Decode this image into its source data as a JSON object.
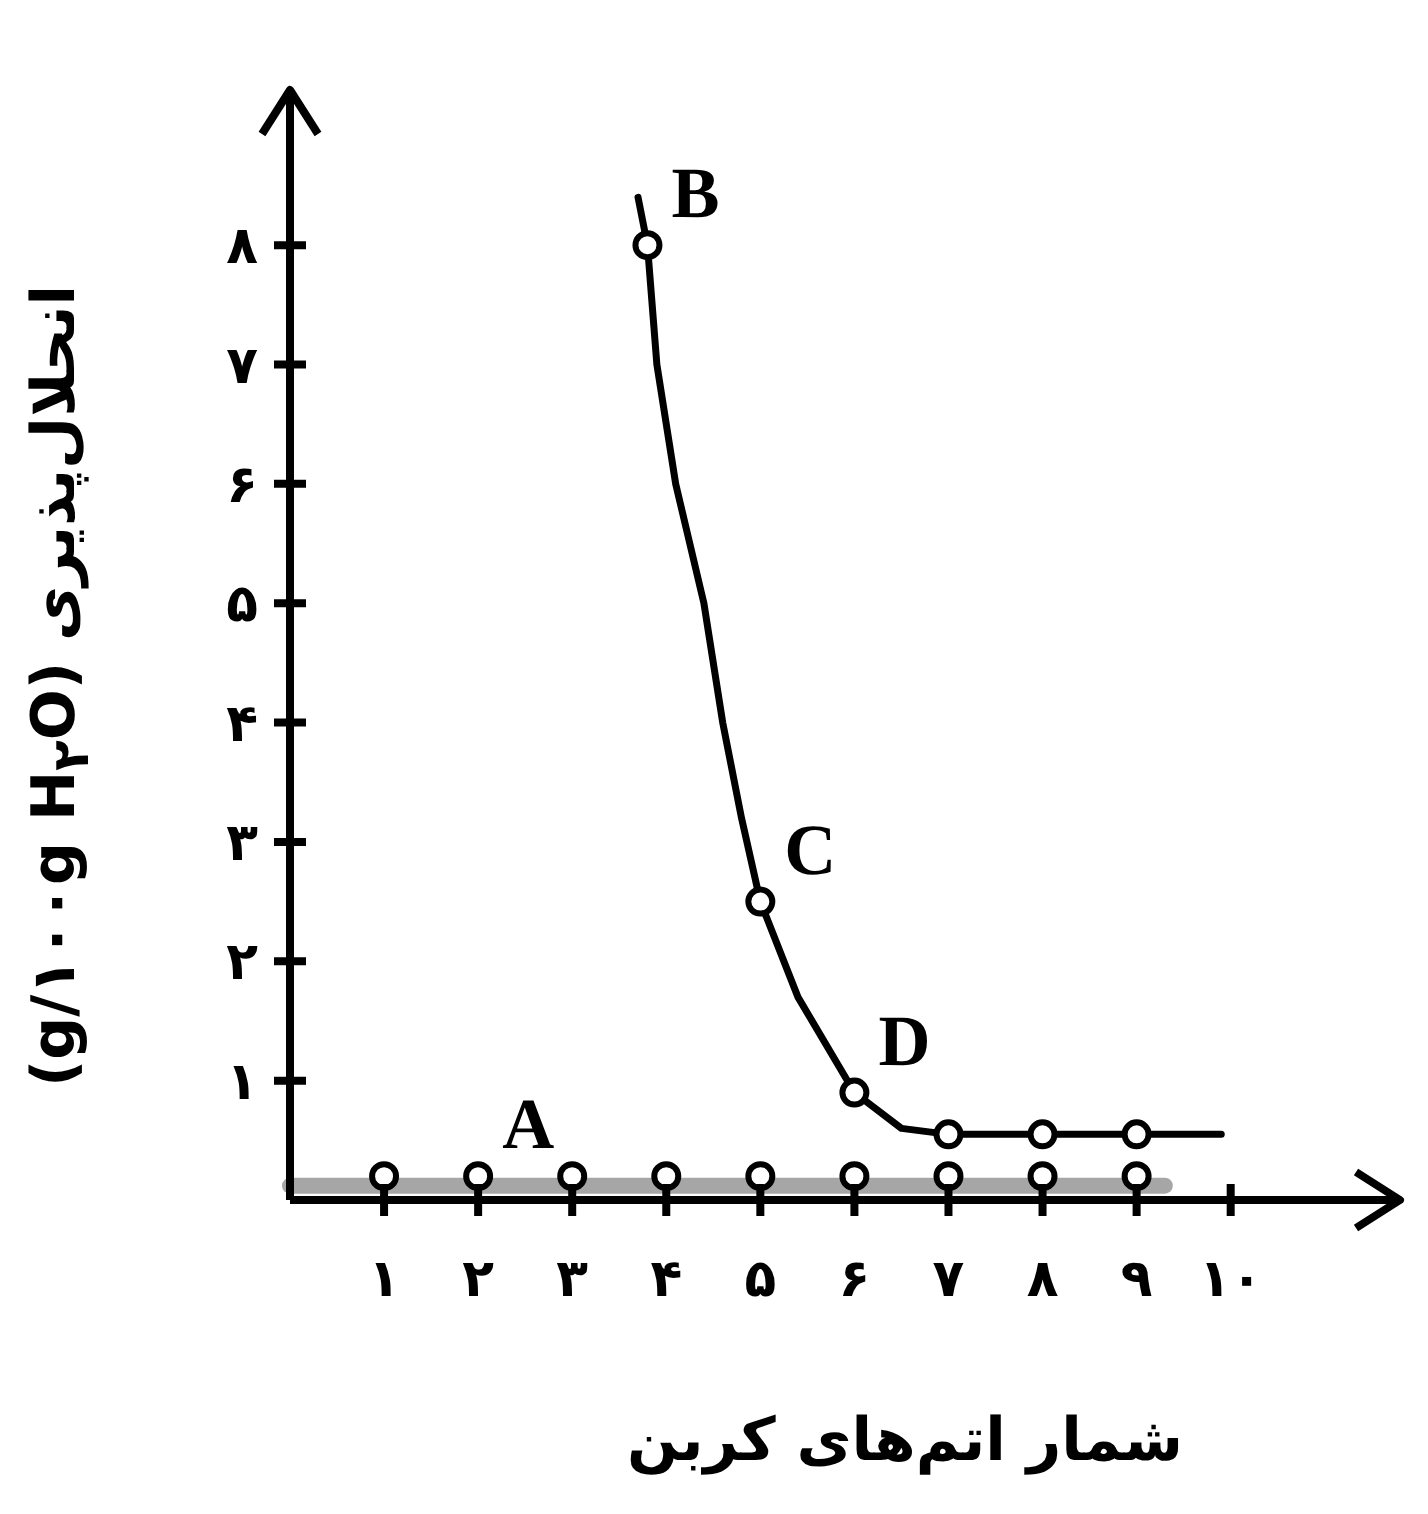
{
  "chart_data": {
    "type": "scatter",
    "xlabel": "شمار اتم‌های کربن",
    "ylabel": "انحلال‌پذیری (g/۱۰۰g H$_{۲}$O)",
    "xlim": [
      0,
      11.8
    ],
    "ylim": [
      0,
      9.3
    ],
    "xticks": [
      {
        "value": 1,
        "label": "۱"
      },
      {
        "value": 2,
        "label": "۲"
      },
      {
        "value": 3,
        "label": "۳"
      },
      {
        "value": 4,
        "label": "۴"
      },
      {
        "value": 5,
        "label": "۵"
      },
      {
        "value": 6,
        "label": "۶"
      },
      {
        "value": 7,
        "label": "۷"
      },
      {
        "value": 8,
        "label": "۸"
      },
      {
        "value": 9,
        "label": "۹"
      },
      {
        "value": 10,
        "label": "۱۰"
      }
    ],
    "yticks": [
      {
        "value": 1,
        "label": "۱"
      },
      {
        "value": 2,
        "label": "۲"
      },
      {
        "value": 3,
        "label": "۳"
      },
      {
        "value": 4,
        "label": "۴"
      },
      {
        "value": 5,
        "label": "۵"
      },
      {
        "value": 6,
        "label": "۶"
      },
      {
        "value": 7,
        "label": "۷"
      },
      {
        "value": 8,
        "label": "۸"
      }
    ],
    "grid": false,
    "series": [
      {
        "type": "line",
        "color": "#a6a6a6",
        "marker": "none",
        "x": [
          0,
          9.3
        ],
        "values": [
          0.12,
          0.12
        ]
      },
      {
        "type": "line",
        "color": "#000000",
        "marker": "none",
        "x": [
          3.7,
          3.8,
          3.9,
          4.1,
          4.4,
          4.6,
          4.8,
          5,
          5.4,
          6,
          6.5,
          7,
          8,
          9,
          9.9
        ],
        "values": [
          8.4,
          8,
          7,
          6,
          5,
          4,
          3.2,
          2.5,
          1.7,
          0.9,
          0.6,
          0.55,
          0.55,
          0.55,
          0.55
        ]
      },
      {
        "type": "scatter",
        "color": "#000000",
        "marker": "circle",
        "x": [
          1,
          2,
          3,
          4,
          5,
          6,
          7,
          8,
          9
        ],
        "values": [
          0.2,
          0.2,
          0.2,
          0.2,
          0.2,
          0.2,
          0.2,
          0.2,
          0.2
        ]
      },
      {
        "type": "scatter",
        "color": "#000000",
        "marker": "circle",
        "x": [
          3.8,
          5,
          6,
          7,
          8,
          9
        ],
        "values": [
          8,
          2.5,
          0.9,
          0.55,
          0.55,
          0.55
        ]
      }
    ],
    "annotations": [
      {
        "text": "A",
        "x": 2,
        "y": 0.2
      },
      {
        "text": "B",
        "x": 3.8,
        "y": 8
      },
      {
        "text": "C",
        "x": 5,
        "y": 2.5
      },
      {
        "text": "D",
        "x": 6,
        "y": 0.9
      }
    ]
  }
}
